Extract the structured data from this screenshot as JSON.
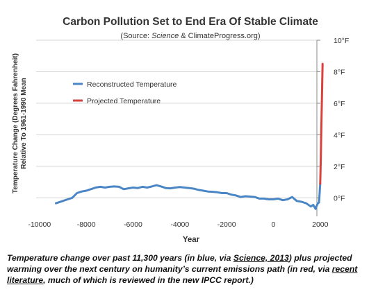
{
  "chart_data": {
    "type": "line",
    "title": "Carbon Pollution Set to End Era Of Stable Climate",
    "subtitle": {
      "prefix": "(Source: ",
      "italic": "Science",
      "suffix": " & ClimateProgress.org)"
    },
    "xlabel": "Year",
    "ylabel": [
      "Temperature Change (Degrees Fahrenheit)",
      "Relative To 1961-1990 Mean"
    ],
    "xlim": [
      -10500,
      2600
    ],
    "ylim": [
      -1,
      10
    ],
    "x_ticks": [
      {
        "value": -10000,
        "label": "-10000"
      },
      {
        "value": -8000,
        "label": "-8000"
      },
      {
        "value": -6000,
        "label": "-6000"
      },
      {
        "value": -4000,
        "label": "-4000"
      },
      {
        "value": -2000,
        "label": "-2000"
      },
      {
        "value": 0,
        "label": "0"
      },
      {
        "value": 2000,
        "label": "2000"
      }
    ],
    "y_ticks": [
      {
        "value": 0,
        "label": "0°F"
      },
      {
        "value": 2,
        "label": "2°F"
      },
      {
        "value": 4,
        "label": "4°F"
      },
      {
        "value": 6,
        "label": "6°F"
      },
      {
        "value": 8,
        "label": "8°F"
      },
      {
        "value": 10,
        "label": "10°F"
      }
    ],
    "y_axis_side": "right",
    "grid": "horizontal",
    "legend_placement": "upper-left",
    "series": [
      {
        "name": "Reconstructed Temperature",
        "color": "#4a86c6",
        "x": [
          -9300,
          -9000,
          -8800,
          -8600,
          -8400,
          -8200,
          -8000,
          -7800,
          -7600,
          -7400,
          -7200,
          -7000,
          -6800,
          -6600,
          -6400,
          -6200,
          -6000,
          -5800,
          -5600,
          -5400,
          -5200,
          -5000,
          -4800,
          -4600,
          -4400,
          -4200,
          -4000,
          -3800,
          -3600,
          -3400,
          -3200,
          -3000,
          -2800,
          -2600,
          -2400,
          -2200,
          -2000,
          -1800,
          -1600,
          -1400,
          -1200,
          -1000,
          -800,
          -600,
          -400,
          -200,
          0,
          200,
          400,
          600,
          800,
          1000,
          1200,
          1400,
          1600,
          1700,
          1800,
          1850,
          1900,
          1950,
          2000
        ],
        "y": [
          -0.35,
          -0.2,
          -0.1,
          0.0,
          0.3,
          0.4,
          0.45,
          0.55,
          0.65,
          0.7,
          0.65,
          0.7,
          0.72,
          0.7,
          0.55,
          0.6,
          0.65,
          0.62,
          0.7,
          0.65,
          0.72,
          0.8,
          0.72,
          0.62,
          0.6,
          0.65,
          0.68,
          0.65,
          0.62,
          0.58,
          0.5,
          0.45,
          0.4,
          0.38,
          0.35,
          0.3,
          0.3,
          0.2,
          0.15,
          0.05,
          0.1,
          0.08,
          0.05,
          -0.05,
          -0.05,
          -0.1,
          -0.1,
          -0.05,
          -0.15,
          -0.1,
          0.05,
          -0.2,
          -0.25,
          -0.35,
          -0.55,
          -0.45,
          -0.7,
          -0.5,
          -0.35,
          -0.3,
          0.9
        ]
      },
      {
        "name": "Projected Temperature",
        "color": "#d9413d",
        "x": [
          2000,
          2020,
          2040,
          2060,
          2080,
          2100
        ],
        "y": [
          0.9,
          2.2,
          3.7,
          5.3,
          6.9,
          8.5
        ]
      }
    ]
  },
  "caption": {
    "part1": "Temperature change over past 11,300 years (in blue, via ",
    "link1": "Science, 2013",
    "part2": ") plus projected warming over the next century on humanity’s current emissions path (in red, via ",
    "link2": "recent literature",
    "part3": ", much of which is reviewed in the new IPCC report.)"
  }
}
